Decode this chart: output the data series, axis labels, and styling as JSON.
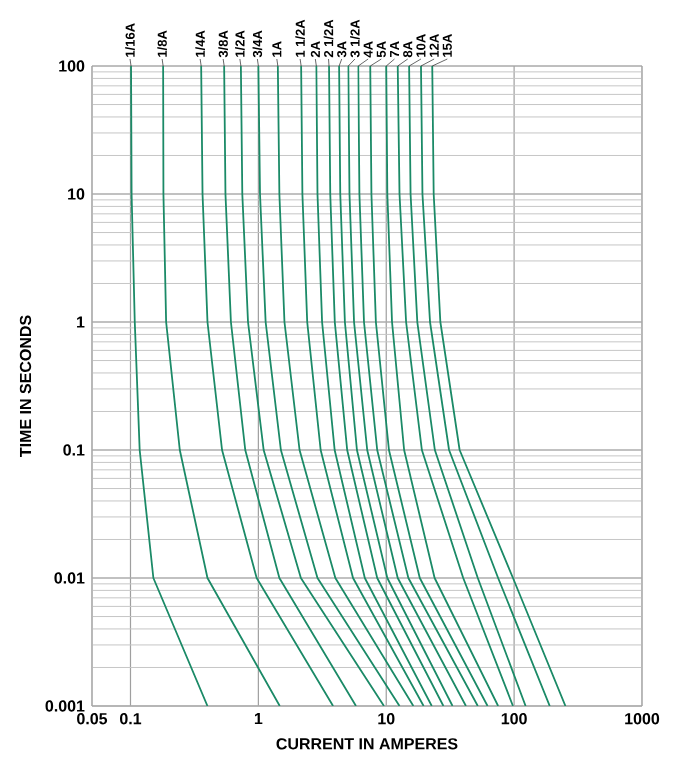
{
  "chart_data": {
    "type": "line",
    "xlabel": "CURRENT IN AMPERES",
    "ylabel": "TIME IN SECONDS",
    "log": "xy",
    "grid": true,
    "color": "#1b8a67",
    "line_style": "solid",
    "xlim": [
      0.05,
      1000
    ],
    "ylim": [
      0.001,
      100
    ],
    "xticks": [
      0.05,
      0.1,
      1,
      10,
      100,
      1000
    ],
    "yticks": [
      0.001,
      0.01,
      0.1,
      1,
      10,
      100
    ],
    "series": [
      {
        "name": "1/16A",
        "x": [
          0.101,
          0.102,
          0.108,
          0.118,
          0.151,
          0.4
        ],
        "values": [
          100,
          10,
          1,
          0.1,
          0.01,
          0.001
        ]
      },
      {
        "name": "1/8A",
        "x": [
          0.18,
          0.181,
          0.19,
          0.243,
          0.4,
          1.47
        ],
        "values": [
          100,
          10,
          1,
          0.1,
          0.01,
          0.001
        ]
      },
      {
        "name": "1/4A",
        "x": [
          0.357,
          0.366,
          0.4,
          0.52,
          0.97,
          3.84
        ],
        "values": [
          100,
          10,
          1,
          0.1,
          0.01,
          0.001
        ]
      },
      {
        "name": "3/8A",
        "x": [
          0.54,
          0.553,
          0.61,
          0.79,
          1.46,
          5.8
        ],
        "values": [
          100,
          10,
          1,
          0.1,
          0.01,
          0.001
        ]
      },
      {
        "name": "1/2A",
        "x": [
          0.73,
          0.749,
          0.83,
          1.1,
          2.15,
          9.6
        ],
        "values": [
          100,
          10,
          1,
          0.1,
          0.01,
          0.001
        ]
      },
      {
        "name": "3/4A",
        "x": [
          1.0,
          1.03,
          1.14,
          1.5,
          2.9,
          12.7
        ],
        "values": [
          100,
          10,
          1,
          0.1,
          0.01,
          0.001
        ]
      },
      {
        "name": "1A",
        "x": [
          1.42,
          1.46,
          1.6,
          2.1,
          4.0,
          16.3
        ],
        "values": [
          100,
          10,
          1,
          0.1,
          0.01,
          0.001
        ]
      },
      {
        "name": "1 1/2A",
        "x": [
          2.16,
          2.21,
          2.41,
          3.07,
          5.5,
          19.6
        ],
        "values": [
          100,
          10,
          1,
          0.1,
          0.01,
          0.001
        ]
      },
      {
        "name": "2A",
        "x": [
          2.84,
          2.9,
          3.15,
          3.95,
          6.8,
          22.7
        ],
        "values": [
          100,
          10,
          1,
          0.1,
          0.01,
          0.001
        ]
      },
      {
        "name": "2 1/2A",
        "x": [
          3.57,
          3.65,
          3.96,
          4.95,
          8.5,
          28
        ],
        "values": [
          100,
          10,
          1,
          0.1,
          0.01,
          0.001
        ]
      },
      {
        "name": "3A",
        "x": [
          4.28,
          4.37,
          4.75,
          5.9,
          10.2,
          33
        ],
        "values": [
          100,
          10,
          1,
          0.1,
          0.01,
          0.001
        ]
      },
      {
        "name": "3 1/2A",
        "x": [
          5.05,
          5.16,
          5.6,
          7.1,
          12.3,
          42
        ],
        "values": [
          100,
          10,
          1,
          0.1,
          0.01,
          0.001
        ]
      },
      {
        "name": "4A",
        "x": [
          6.04,
          6.17,
          6.7,
          8.5,
          14.9,
          52
        ],
        "values": [
          100,
          10,
          1,
          0.1,
          0.01,
          0.001
        ]
      },
      {
        "name": "5A",
        "x": [
          7.5,
          7.66,
          8.3,
          10.5,
          18.3,
          62
        ],
        "values": [
          100,
          10,
          1,
          0.1,
          0.01,
          0.001
        ]
      },
      {
        "name": "7A",
        "x": [
          10,
          10.2,
          11.1,
          13.8,
          23.9,
          75
        ],
        "values": [
          100,
          10,
          1,
          0.1,
          0.01,
          0.001
        ]
      },
      {
        "name": "8A",
        "x": [
          12.3,
          12.7,
          14.3,
          19,
          40,
          98
        ],
        "values": [
          100,
          10,
          1,
          0.1,
          0.01,
          0.001
        ]
      },
      {
        "name": "10A",
        "x": [
          15.1,
          15.5,
          17.5,
          24,
          52,
          123
        ],
        "values": [
          100,
          10,
          1,
          0.1,
          0.01,
          0.001
        ]
      },
      {
        "name": "12A",
        "x": [
          18.7,
          19.2,
          22,
          31,
          75,
          190
        ],
        "values": [
          100,
          10,
          1,
          0.1,
          0.01,
          0.001
        ]
      },
      {
        "name": "15A",
        "x": [
          22.9,
          23.5,
          26.5,
          37.5,
          98,
          252
        ],
        "values": [
          100,
          10,
          1,
          0.1,
          0.01,
          0.001
        ]
      }
    ]
  }
}
